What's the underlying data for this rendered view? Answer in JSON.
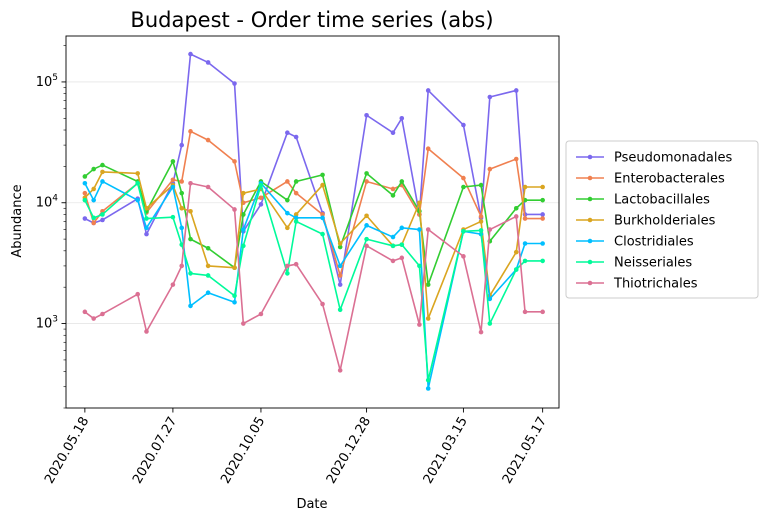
{
  "chart_data": {
    "type": "line",
    "title": "Budapest - Order time series (abs)",
    "xlabel": "Date",
    "ylabel": "Abundance",
    "yscale": "log",
    "ylim": [
      200,
      240000
    ],
    "xlim": [
      "2020-05-03",
      "2021-05-30"
    ],
    "grid": "horizontal-major",
    "legend_position": "outside-right",
    "x_ticks": [
      "2020.05.18",
      "2020.07.27",
      "2020.10.05",
      "2020.12.28",
      "2021.03.15",
      "2021.05.17"
    ],
    "x_tick_dates": [
      "2020-05-18",
      "2020-07-27",
      "2020-10-05",
      "2020-12-28",
      "2021-03-15",
      "2021-05-17"
    ],
    "y_ticks": [
      {
        "value": 1000,
        "base": "10",
        "exp": "3"
      },
      {
        "value": 10000,
        "base": "10",
        "exp": "4"
      },
      {
        "value": 100000,
        "base": "10",
        "exp": "5"
      }
    ],
    "x": [
      "2020-05-18",
      "2020-05-25",
      "2020-06-01",
      "2020-06-29",
      "2020-07-06",
      "2020-07-27",
      "2020-08-03",
      "2020-08-10",
      "2020-08-24",
      "2020-09-14",
      "2020-09-21",
      "2020-10-05",
      "2020-10-26",
      "2020-11-02",
      "2020-11-23",
      "2020-12-07",
      "2020-12-28",
      "2021-01-18",
      "2021-01-25",
      "2021-02-08",
      "2021-02-15",
      "2021-03-15",
      "2021-03-29",
      "2021-04-05",
      "2021-04-26",
      "2021-05-03",
      "2021-05-17"
    ],
    "series": [
      {
        "name": "Pseudomonadales",
        "color": "#7b68ee",
        "values": [
          7400,
          6800,
          7200,
          10800,
          5500,
          14500,
          30000,
          170000,
          145000,
          97000,
          5800,
          9700,
          38000,
          35000,
          8200,
          2100,
          53000,
          38000,
          50000,
          8000,
          85000,
          44000,
          7500,
          75000,
          85000,
          8000,
          8000
        ]
      },
      {
        "name": "Enterobacterales",
        "color": "#f08050",
        "values": [
          12000,
          6800,
          8500,
          14500,
          8300,
          15500,
          15000,
          39000,
          33000,
          22000,
          10000,
          11000,
          15000,
          12000,
          8000,
          2500,
          15000,
          13000,
          14000,
          8000,
          28000,
          16000,
          7700,
          19000,
          23000,
          7400,
          7400
        ]
      },
      {
        "name": "Lactobacillales",
        "color": "#32cd32",
        "values": [
          16500,
          19000,
          20500,
          15000,
          8500,
          22000,
          12000,
          5000,
          4200,
          2900,
          8000,
          15000,
          10500,
          15000,
          17000,
          4300,
          17500,
          11500,
          15000,
          8500,
          2100,
          13500,
          14000,
          4800,
          9000,
          10500,
          10500
        ]
      },
      {
        "name": "Burkholderiales",
        "color": "#daa520",
        "values": [
          11000,
          13000,
          18000,
          17500,
          9000,
          14000,
          9000,
          8500,
          3000,
          2900,
          12000,
          13000,
          6200,
          8000,
          14000,
          4600,
          7800,
          4400,
          4500,
          10000,
          1100,
          6000,
          7000,
          1700,
          3900,
          13500,
          13500
        ]
      },
      {
        "name": "Clostridiales",
        "color": "#00bfff",
        "values": [
          14500,
          10500,
          15000,
          10500,
          6200,
          13500,
          6200,
          1400,
          1800,
          1500,
          6000,
          14500,
          8200,
          7500,
          7500,
          3000,
          6500,
          5200,
          6200,
          6000,
          290,
          5800,
          5500,
          1600,
          2800,
          4600,
          4600
        ]
      },
      {
        "name": "Neisseriales",
        "color": "#00fa9a",
        "values": [
          10500,
          7500,
          8000,
          14500,
          7400,
          7600,
          4500,
          2600,
          2500,
          1700,
          4400,
          14000,
          2600,
          7000,
          5500,
          1300,
          5000,
          4400,
          4500,
          3000,
          340,
          5800,
          5900,
          1000,
          2800,
          3300,
          3300
        ]
      },
      {
        "name": "Thiotrichales",
        "color": "#db7093",
        "values": [
          1250,
          1100,
          1200,
          1750,
          860,
          2100,
          3000,
          14500,
          13500,
          8800,
          1000,
          1200,
          3000,
          3100,
          1450,
          410,
          4400,
          3300,
          3500,
          980,
          6000,
          3600,
          850,
          6000,
          7700,
          1250,
          1250
        ]
      }
    ]
  }
}
